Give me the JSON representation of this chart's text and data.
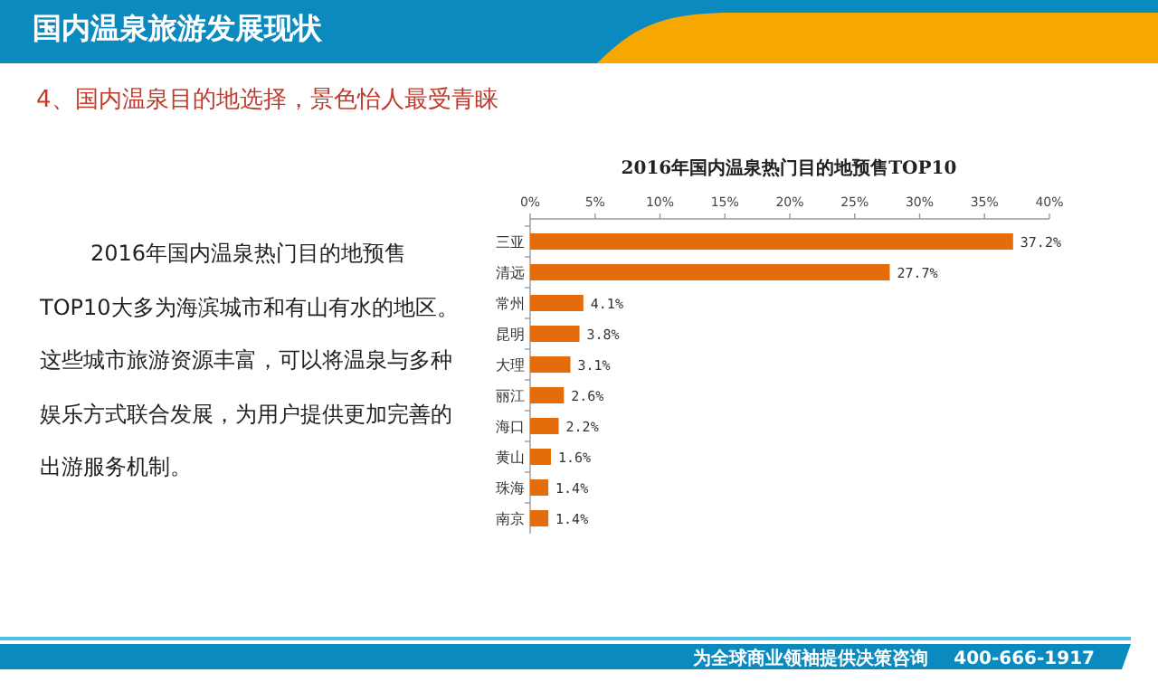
{
  "chart_data": {
    "type": "bar",
    "orientation": "horizontal",
    "title": "2016年国内温泉热门目的地预售TOP10",
    "categories": [
      "三亚",
      "清远",
      "常州",
      "昆明",
      "大理",
      "丽江",
      "海口",
      "黄山",
      "珠海",
      "南京"
    ],
    "values": [
      37.2,
      27.7,
      4.1,
      3.8,
      3.1,
      2.6,
      2.2,
      1.6,
      1.4,
      1.4
    ],
    "value_labels": [
      "37.2%",
      "27.7%",
      "4.1%",
      "3.8%",
      "3.1%",
      "2.6%",
      "2.2%",
      "1.6%",
      "1.4%",
      "1.4%"
    ],
    "color": "#e46c0a",
    "xlim": [
      0,
      40
    ],
    "xticks": [
      {
        "value": 0,
        "label": "0%"
      },
      {
        "value": 5,
        "label": "5%"
      },
      {
        "value": 10,
        "label": "10%"
      },
      {
        "value": 15,
        "label": "15%"
      },
      {
        "value": 20,
        "label": "20%"
      },
      {
        "value": 25,
        "label": "25%"
      },
      {
        "value": 30,
        "label": "30%"
      },
      {
        "value": 35,
        "label": "35%"
      },
      {
        "value": 40,
        "label": "40%"
      }
    ],
    "grid": false,
    "annotations": [
      "国内温泉旅游发展现状",
      "4、国内温泉目的地选择，景色怡人最受青睐",
      "2016年国内温泉热门目的地预售TOP10大多为海滨城市和有山有水的地区。这些城市旅游资源丰富，可以将温泉与多种娱乐方式联合发展，为用户提供更加完善的出游服务机制。",
      "为全球商业领袖提供决策咨询",
      "400-666-1917"
    ]
  }
}
